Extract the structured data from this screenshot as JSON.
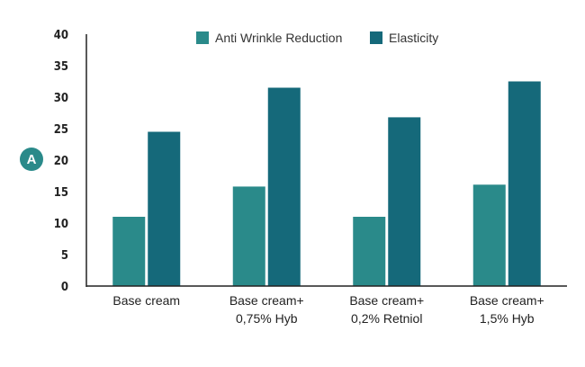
{
  "panel_label": "A",
  "chart_data": {
    "type": "bar",
    "categories": [
      [
        "Base cream"
      ],
      [
        "Base cream+",
        "0,75% Hyb"
      ],
      [
        "Base cream+",
        "0,2% Retniol"
      ],
      [
        "Base cream+",
        "1,5% Hyb"
      ]
    ],
    "series": [
      {
        "name": "Anti Wrinkle Reduction",
        "values": [
          11,
          15.8,
          11,
          16.1
        ]
      },
      {
        "name": "Elasticity",
        "values": [
          24.5,
          31.5,
          26.8,
          32.5
        ]
      }
    ],
    "ylim": [
      0,
      40
    ],
    "yticks": [
      "0",
      "5",
      "10",
      "15",
      "20",
      "25",
      "30",
      "35",
      "40"
    ],
    "legend": "top-center",
    "grid": false,
    "colors": {
      "Anti Wrinkle Reduction": "#2a8a8a",
      "Elasticity": "#15697a",
      "axis": "#222222",
      "panel": "#2a8a8a"
    }
  }
}
